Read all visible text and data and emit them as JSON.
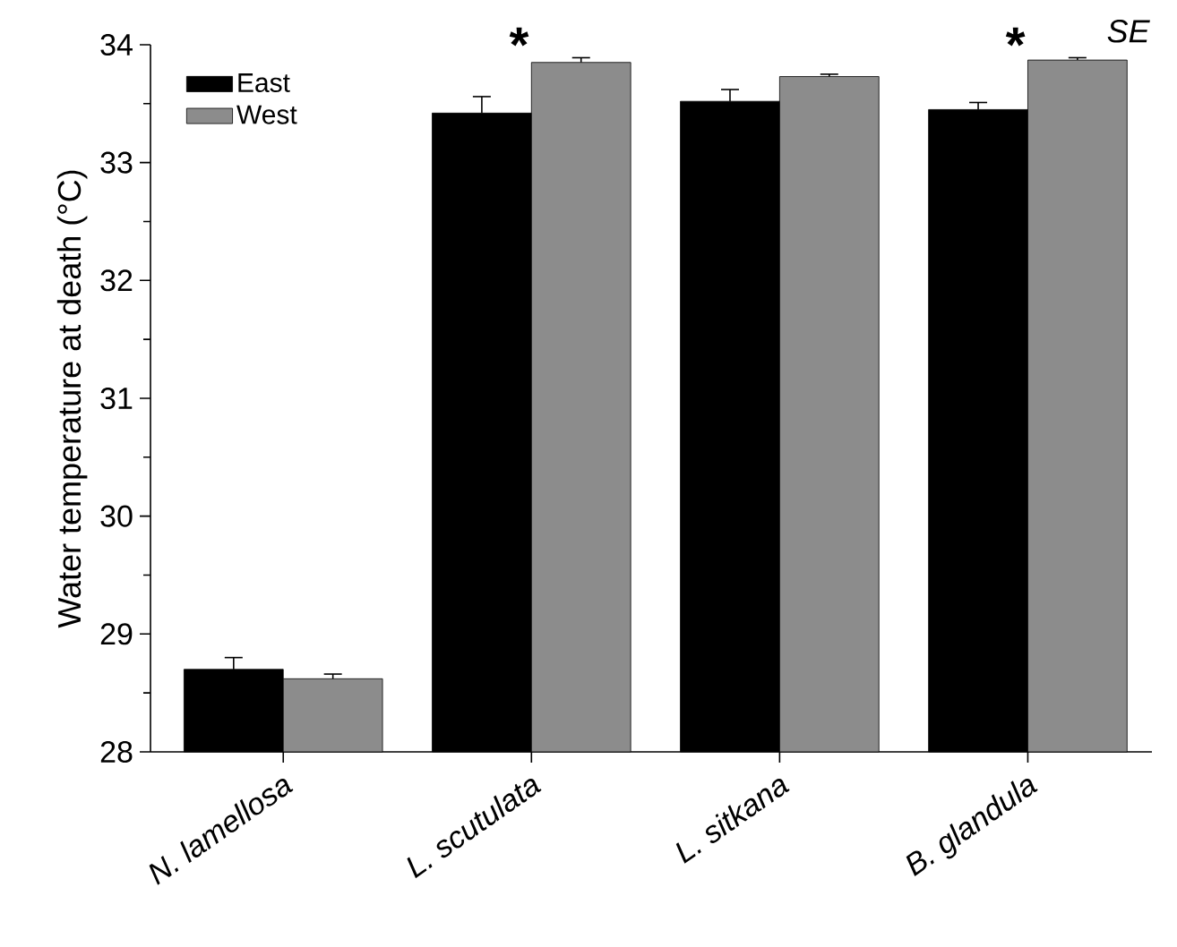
{
  "chart_data": {
    "type": "bar",
    "ylabel": "Water temperature at death (°C)",
    "categories": [
      "N. lamellosa",
      "L. scutulata",
      "L. sitkana",
      "B. glandula"
    ],
    "series": [
      {
        "name": "East",
        "color": "#000000",
        "values": [
          28.7,
          33.42,
          33.52,
          33.45
        ],
        "errors": [
          0.1,
          0.14,
          0.1,
          0.06
        ]
      },
      {
        "name": "West",
        "color": "#8c8c8c",
        "values": [
          28.62,
          33.85,
          33.73,
          33.87
        ],
        "errors": [
          0.04,
          0.04,
          0.02,
          0.02
        ]
      }
    ],
    "ylim": [
      28,
      34
    ],
    "yticks": [
      28,
      29,
      30,
      31,
      32,
      33,
      34
    ],
    "legend": "top left",
    "grid": false,
    "annotations": [
      "*",
      "*",
      "SE"
    ]
  }
}
